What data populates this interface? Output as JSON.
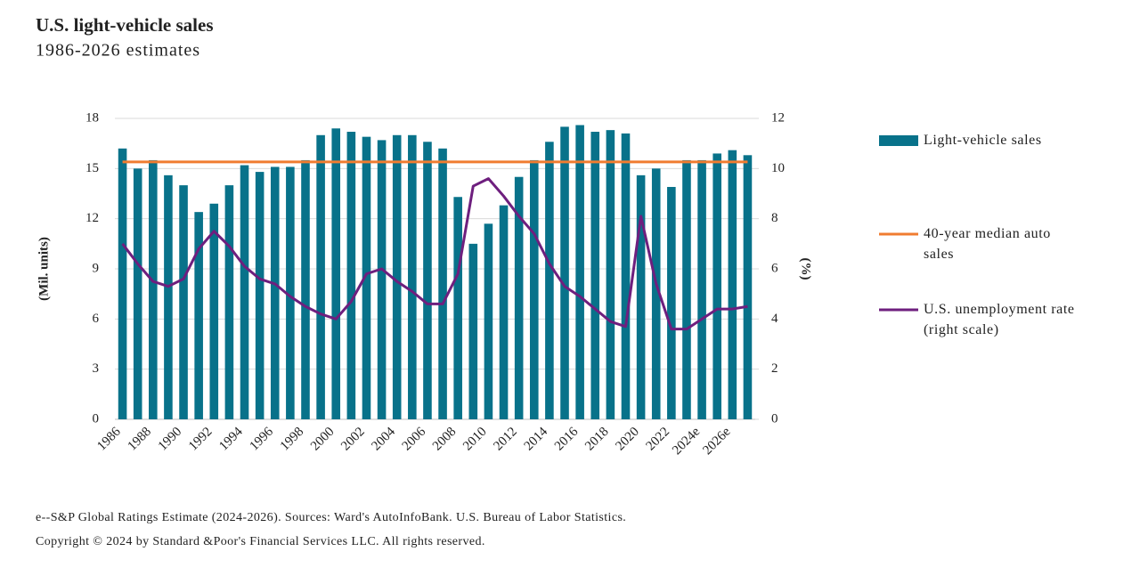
{
  "chart_data": {
    "type": "bar_line",
    "title": "U.S. light-vehicle sales",
    "subtitle": "1986-2026 estimates",
    "ylabel": "(Mil. units)",
    "y2label": "(%)",
    "footnote": "e--S&P Global Ratings Estimate (2024-2026). Sources: Ward's AutoInfoBank. U.S. Bureau of Labor Statistics.",
    "copyright": "Copyright © 2024 by Standard &Poor's Financial Services LLC. All rights reserved.",
    "categories": [
      "1986",
      null,
      "1988",
      null,
      "1990",
      null,
      "1992",
      null,
      "1994",
      null,
      "1996",
      null,
      "1998",
      null,
      "2000",
      null,
      "2002",
      null,
      "2004",
      null,
      "2006",
      null,
      "2008",
      null,
      "2010",
      null,
      "2012",
      null,
      "2014",
      null,
      "2016",
      null,
      "2018",
      null,
      "2020",
      null,
      "2022",
      null,
      "2024e",
      null,
      "2026e",
      null
    ],
    "series": [
      {
        "name": "Light-vehicle sales",
        "kind": "bar",
        "color": "#08728a",
        "values": [
          16.2,
          15.0,
          15.5,
          14.6,
          14.0,
          12.4,
          12.9,
          14.0,
          15.2,
          14.8,
          15.1,
          15.1,
          15.5,
          17.0,
          17.4,
          17.2,
          16.9,
          16.7,
          17.0,
          17.0,
          16.6,
          16.2,
          13.3,
          10.5,
          11.7,
          12.8,
          14.5,
          15.5,
          16.6,
          17.5,
          17.6,
          17.2,
          17.3,
          17.1,
          14.6,
          15.0,
          13.9,
          15.5,
          15.5,
          15.9,
          16.1,
          15.8
        ]
      },
      {
        "name": "40-year median auto sales",
        "kind": "line",
        "color": "#f07c30",
        "values": [
          15.4,
          15.4,
          15.4,
          15.4,
          15.4,
          15.4,
          15.4,
          15.4,
          15.4,
          15.4,
          15.4,
          15.4,
          15.4,
          15.4,
          15.4,
          15.4,
          15.4,
          15.4,
          15.4,
          15.4,
          15.4,
          15.4,
          15.4,
          15.4,
          15.4,
          15.4,
          15.4,
          15.4,
          15.4,
          15.4,
          15.4,
          15.4,
          15.4,
          15.4,
          15.4,
          15.4,
          15.4,
          15.4,
          15.4,
          15.4,
          15.4,
          15.4
        ]
      },
      {
        "name": "U.S. unemployment rate (right scale)",
        "kind": "line",
        "axis": "y2",
        "color": "#6e1f7e",
        "values": [
          7.0,
          6.2,
          5.5,
          5.3,
          5.6,
          6.8,
          7.5,
          6.9,
          6.1,
          5.6,
          5.4,
          4.9,
          4.5,
          4.2,
          4.0,
          4.7,
          5.8,
          6.0,
          5.5,
          5.1,
          4.6,
          4.6,
          5.8,
          9.3,
          9.6,
          8.9,
          8.1,
          7.4,
          6.2,
          5.3,
          4.9,
          4.4,
          3.9,
          3.7,
          8.1,
          5.4,
          3.6,
          3.6,
          4.0,
          4.4,
          4.4,
          4.5
        ]
      }
    ],
    "ylim": [
      0,
      18
    ],
    "yticks": [
      0,
      3,
      6,
      9,
      12,
      15,
      18
    ],
    "y2lim": [
      0,
      12
    ],
    "y2ticks": [
      0,
      2,
      4,
      6,
      8,
      10,
      12
    ],
    "grid": true
  }
}
